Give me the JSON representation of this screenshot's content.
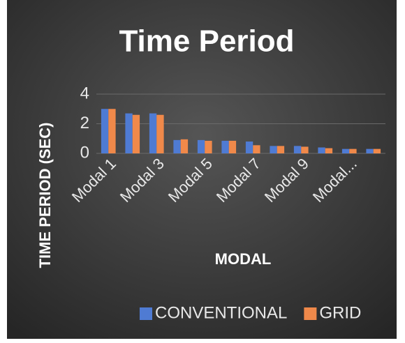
{
  "chart_data": {
    "type": "bar",
    "title": "Time Period",
    "x_label": "MODAL",
    "y_label": "TIME PERIOD (SEC)",
    "categories": [
      "Modal 1",
      null,
      "Modal 3",
      null,
      "Modal 5",
      null,
      "Modal 7",
      null,
      "Modal 9",
      null,
      "Modal...",
      null
    ],
    "series": [
      {
        "name": "CONVENTIONAL",
        "color": "#4f7bd3",
        "values": [
          3.0,
          2.7,
          2.7,
          0.9,
          0.9,
          0.85,
          0.8,
          0.5,
          0.5,
          0.4,
          0.3,
          0.3
        ]
      },
      {
        "name": "GRID",
        "color": "#f0894a",
        "values": [
          3.0,
          2.6,
          2.6,
          0.95,
          0.85,
          0.85,
          0.55,
          0.5,
          0.45,
          0.35,
          0.3,
          0.3
        ]
      }
    ],
    "ylim": [
      0,
      4
    ],
    "yticks": [
      0,
      2,
      4
    ],
    "grid": true,
    "legend": "bottom"
  }
}
